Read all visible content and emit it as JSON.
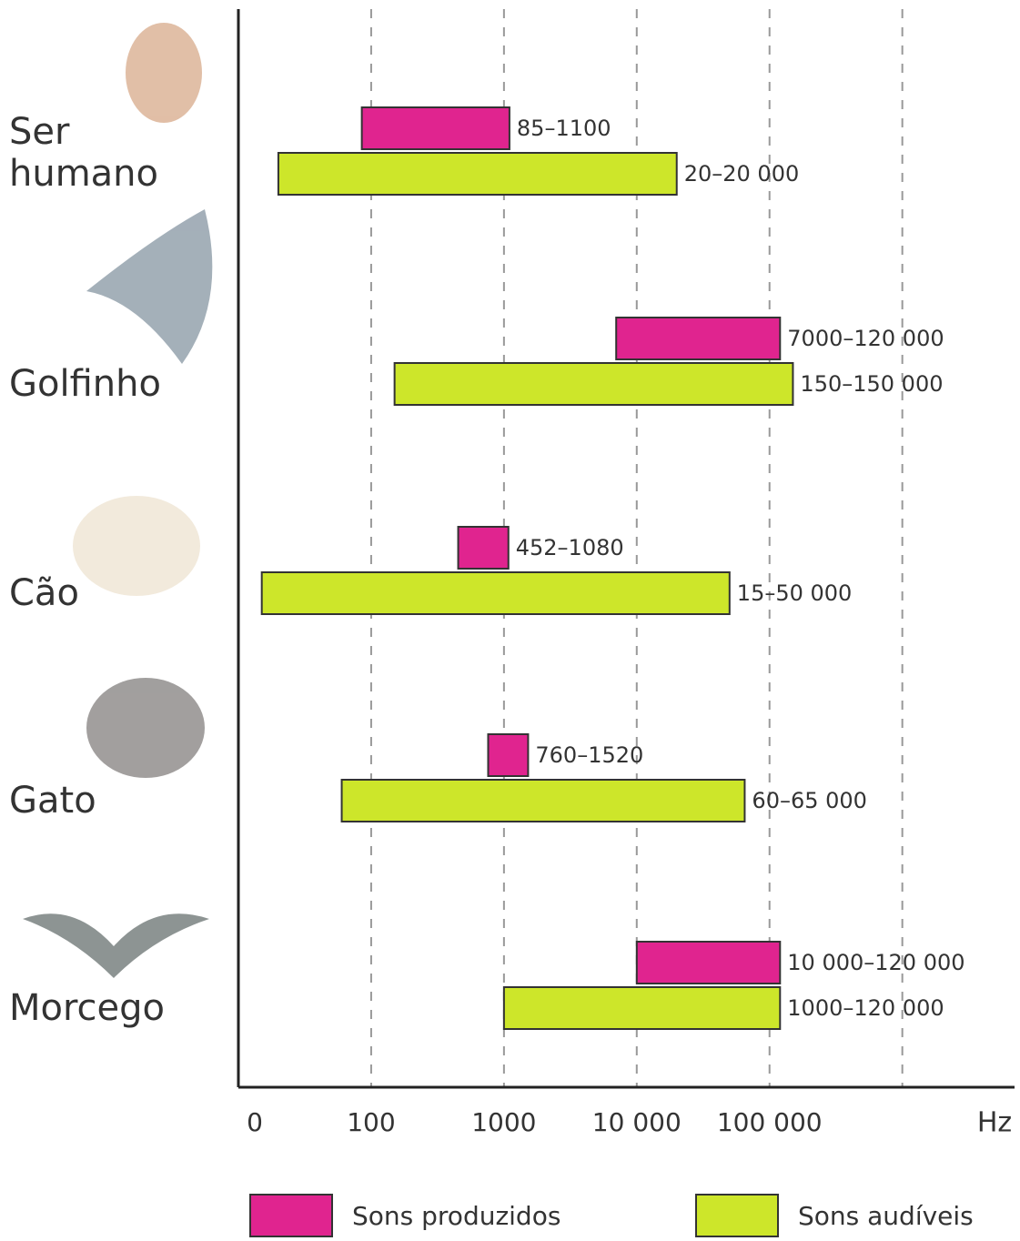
{
  "chart_data": {
    "type": "range-bar",
    "categories": [
      "Ser humano",
      "Golfinho",
      "Cão",
      "Gato",
      "Morcego"
    ],
    "series": [
      {
        "name": "Sons produzidos",
        "color": "#e0248f",
        "values": [
          [
            85,
            1100
          ],
          [
            7000,
            120000
          ],
          [
            452,
            1080
          ],
          [
            760,
            1520
          ],
          [
            10000,
            120000
          ]
        ],
        "value_labels": [
          "85–1100",
          "7000–120 000",
          "452–1080",
          "760–1520",
          "10 000–120 000"
        ]
      },
      {
        "name": "Sons audíveis",
        "color": "#cde62a",
        "values": [
          [
            20,
            20000
          ],
          [
            150,
            150000
          ],
          [
            15,
            50000
          ],
          [
            60,
            65000
          ],
          [
            1000,
            120000
          ]
        ],
        "value_labels": [
          "20–20 000",
          "150–150 000",
          "15–50 000",
          "60–65 000",
          "1000–120 000"
        ]
      }
    ],
    "x_scale": "log",
    "xlim": [
      10,
      7000000
    ],
    "origin_label": "0",
    "xticks": [
      100,
      1000,
      {
        "value": 10000,
        "label": "10 000"
      },
      {
        "value": 100000,
        "label": "100 000"
      },
      {
        "value": 1000000,
        "label": null
      }
    ],
    "xlabel": "Hz",
    "grid": true
  }
}
